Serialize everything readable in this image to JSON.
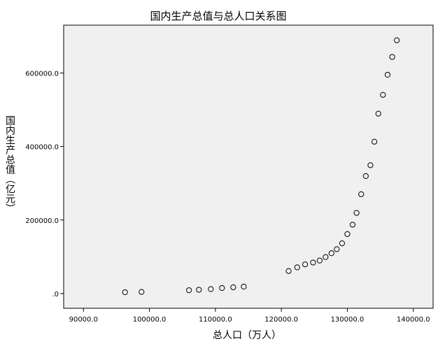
{
  "chart_data": {
    "type": "scatter",
    "title": "国内生产总值与总人口关系图",
    "xlabel": "总人口（万人）",
    "ylabel": "国内生产总值（亿元）",
    "xlim": [
      87000,
      143000
    ],
    "ylim": [
      -40000,
      730000
    ],
    "x_ticks": [
      90000,
      100000,
      110000,
      120000,
      130000,
      140000
    ],
    "x_tick_labels": [
      "90000.0",
      "100000.0",
      "110000.0",
      "120000.0",
      "130000.0",
      "140000.0"
    ],
    "y_ticks": [
      0,
      200000,
      400000,
      600000
    ],
    "y_tick_labels": [
      ".0",
      "200000.0",
      "400000.0",
      "600000.0"
    ],
    "grid": false,
    "legend": "none",
    "colors": {
      "plot_background": "#f0f0f0",
      "marker_stroke": "#000000",
      "axis": "#000000"
    },
    "points": [
      {
        "x": 96300,
        "y": 3600
      },
      {
        "x": 98800,
        "y": 4500
      },
      {
        "x": 106000,
        "y": 9100
      },
      {
        "x": 107500,
        "y": 10300
      },
      {
        "x": 109300,
        "y": 12000
      },
      {
        "x": 111000,
        "y": 15100
      },
      {
        "x": 112700,
        "y": 17100
      },
      {
        "x": 114300,
        "y": 18900
      },
      {
        "x": 121100,
        "y": 61300
      },
      {
        "x": 122400,
        "y": 71200
      },
      {
        "x": 123600,
        "y": 79400
      },
      {
        "x": 124800,
        "y": 84400
      },
      {
        "x": 125800,
        "y": 89700
      },
      {
        "x": 126700,
        "y": 99200
      },
      {
        "x": 127600,
        "y": 109700
      },
      {
        "x": 128400,
        "y": 120700
      },
      {
        "x": 129200,
        "y": 136600
      },
      {
        "x": 130000,
        "y": 161800
      },
      {
        "x": 130800,
        "y": 187300
      },
      {
        "x": 131400,
        "y": 219400
      },
      {
        "x": 132100,
        "y": 270200
      },
      {
        "x": 132800,
        "y": 319500
      },
      {
        "x": 133500,
        "y": 349100
      },
      {
        "x": 134100,
        "y": 413000
      },
      {
        "x": 134700,
        "y": 489300
      },
      {
        "x": 135400,
        "y": 540400
      },
      {
        "x": 136100,
        "y": 595200
      },
      {
        "x": 136800,
        "y": 643600
      },
      {
        "x": 137500,
        "y": 688900
      }
    ]
  }
}
